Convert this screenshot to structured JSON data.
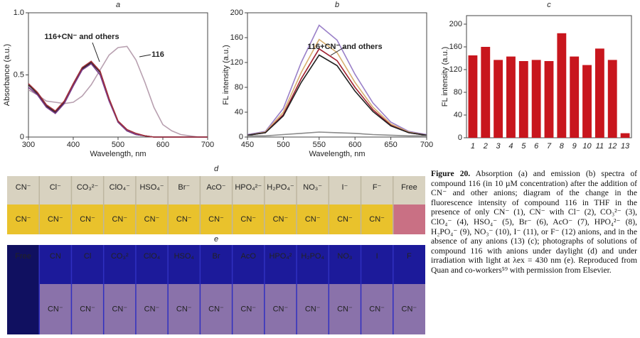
{
  "chart_data": [
    {
      "type": "line",
      "title": "a",
      "xlabel": "Wavelength, nm",
      "ylabel": "Absorbance (a.u.)",
      "x": [
        300,
        320,
        340,
        360,
        380,
        400,
        420,
        440,
        460,
        480,
        500,
        520,
        540,
        560,
        580,
        600,
        620,
        640,
        660,
        680,
        700
      ],
      "series": [
        {
          "color": "#b8a0b0",
          "values": [
            0.38,
            0.34,
            0.29,
            0.28,
            0.27,
            0.28,
            0.33,
            0.42,
            0.54,
            0.66,
            0.72,
            0.73,
            0.62,
            0.44,
            0.24,
            0.1,
            0.05,
            0.02,
            0.01,
            0,
            0
          ]
        },
        {
          "color": "#222222",
          "values": [
            0.42,
            0.35,
            0.25,
            0.2,
            0.28,
            0.42,
            0.55,
            0.6,
            0.52,
            0.3,
            0.12,
            0.05,
            0.02,
            0.01,
            0,
            0,
            0,
            0,
            0,
            0,
            0
          ]
        },
        {
          "color": "#7a3a8a",
          "values": [
            0.4,
            0.34,
            0.24,
            0.19,
            0.27,
            0.41,
            0.54,
            0.59,
            0.5,
            0.29,
            0.12,
            0.05,
            0.02,
            0.01,
            0,
            0,
            0,
            0,
            0,
            0,
            0
          ]
        },
        {
          "color": "#a0303a",
          "values": [
            0.43,
            0.36,
            0.26,
            0.21,
            0.29,
            0.43,
            0.56,
            0.61,
            0.53,
            0.31,
            0.13,
            0.06,
            0.03,
            0.01,
            0,
            0,
            0,
            0,
            0,
            0,
            0
          ]
        }
      ],
      "annotations": [
        "116+CN⁻ and others",
        "116"
      ],
      "xlim": [
        300,
        700
      ],
      "xticks": [
        300,
        400,
        500,
        600,
        700
      ],
      "ylim": [
        0,
        1
      ],
      "yticks": [
        0,
        0.5,
        {
          "value": 1,
          "label": "1.0"
        }
      ]
    },
    {
      "type": "line",
      "title": "b",
      "xlabel": "Wavelength, nm",
      "ylabel": "FL intensity (a.u.)",
      "x": [
        450,
        475,
        500,
        525,
        550,
        575,
        600,
        625,
        650,
        675,
        700
      ],
      "series": [
        {
          "color": "#9a80c8",
          "values": [
            4,
            9,
            46,
            120,
            180,
            156,
            101,
            55,
            24,
            9,
            4
          ]
        },
        {
          "color": "#d8b070",
          "values": [
            3,
            8,
            40,
            104,
            157,
            136,
            88,
            48,
            21,
            8,
            3
          ]
        },
        {
          "color": "#a02030",
          "values": [
            3,
            7,
            36,
            94,
            142,
            123,
            80,
            44,
            19,
            7,
            3
          ]
        },
        {
          "color": "#222222",
          "values": [
            3,
            7,
            34,
            88,
            132,
            115,
            74,
            41,
            18,
            7,
            3
          ]
        },
        {
          "color": "#8a8a8a",
          "values": [
            2,
            2,
            4,
            6,
            8,
            7,
            6,
            4,
            3,
            2,
            2
          ]
        }
      ],
      "annotations": [
        "116+CN⁻ and others"
      ],
      "xlim": [
        450,
        700
      ],
      "xticks": [
        450,
        500,
        550,
        600,
        650,
        700
      ],
      "ylim": [
        0,
        200
      ],
      "yticks": [
        0,
        40,
        80,
        120,
        160,
        200
      ]
    },
    {
      "type": "bar",
      "title": "c",
      "ylabel": "FL intensity (a.u.)",
      "color": "#c8161d",
      "categories": [
        "1",
        "2",
        "3",
        "4",
        "5",
        "6",
        "7",
        "8",
        "9",
        "10",
        "11",
        "12",
        "13"
      ],
      "values": [
        145,
        160,
        137,
        143,
        135,
        137,
        135,
        184,
        143,
        128,
        157,
        137,
        8
      ],
      "ylim": [
        0,
        215
      ],
      "yticks": [
        0,
        40,
        80,
        120,
        160,
        200
      ]
    }
  ],
  "photos": [
    {
      "label": "d",
      "top": [
        "CN⁻",
        "Cl⁻",
        "CO₃²⁻",
        "ClO₄⁻",
        "HSO₄⁻",
        "Br⁻",
        "AcO⁻",
        "HPO₄²⁻",
        "H₂PO₄⁻",
        "NO₃⁻",
        "I⁻",
        "F⁻",
        "Free"
      ],
      "bottom": [
        "CN⁻",
        "CN⁻",
        "CN⁻",
        "CN⁻",
        "CN⁻",
        "CN⁻",
        "CN⁻",
        "CN⁻",
        "CN⁻",
        "CN⁻",
        "CN⁻",
        "CN⁻"
      ]
    },
    {
      "label": "e",
      "top": [
        "Free",
        "CN",
        "Cl",
        "CO₃²",
        "ClO₄",
        "HSO₄",
        "Br",
        "AcO",
        "HPO₄²",
        "H₂PO₄",
        "NO₃",
        "I",
        "F"
      ],
      "bottom": [
        "CN⁻",
        "CN⁻",
        "CN⁻",
        "CN⁻",
        "CN⁻",
        "CN⁻",
        "CN⁻",
        "CN⁻",
        "CN⁻",
        "CN⁻",
        "CN⁻",
        "CN⁻"
      ]
    }
  ],
  "caption": {
    "lead": "Figure 20.",
    "text": "Absorption (a) and emission (b) spectra of compound 116 (in 10 µM concentration) after the addition of CN⁻ and other anions; diagram of the change in the fluorescence intensity of compound 116 in THF in the presence of only CN⁻ (1), CN⁻ with Cl⁻ (2), CO₃²⁻ (3), ClO₄⁻ (4), HSO₄⁻ (5), Br⁻ (6), AcO⁻ (7), HPO₄²⁻ (8), H₂PO₄⁻ (9), NO₃⁻ (10), I⁻ (11), or F⁻ (12) anions, and in the absence of any anions (13) (c); photographs of solutions of compound 116 with anions under daylight (d) and under irradiation with light at λex = 430 nm (e). Reproduced from Quan and co-workers⁵⁹ with permission from Elsevier."
  }
}
